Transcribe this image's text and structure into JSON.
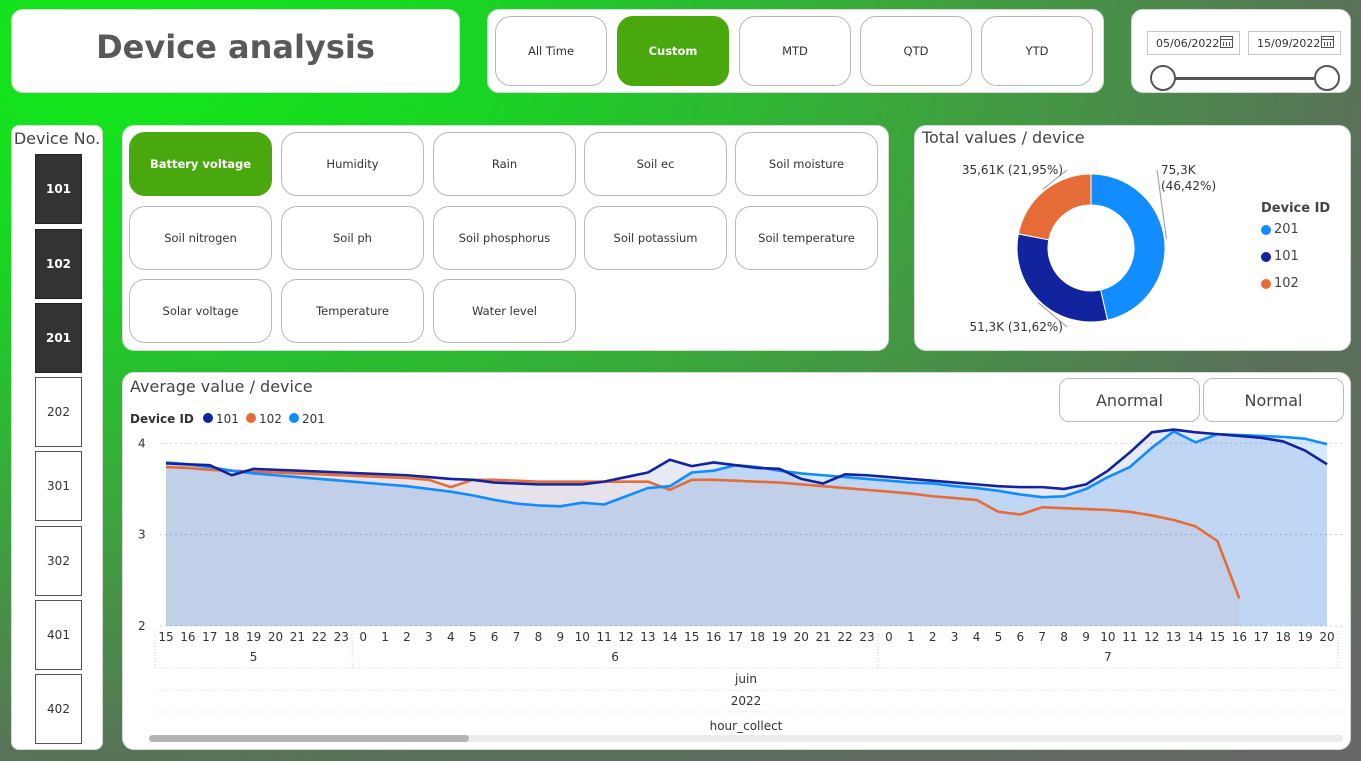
{
  "header": {
    "title": "Device analysis"
  },
  "period_buttons": [
    {
      "label": "All Time",
      "active": false
    },
    {
      "label": "Custom",
      "active": true
    },
    {
      "label": "MTD",
      "active": false
    },
    {
      "label": "QTD",
      "active": false
    },
    {
      "label": "YTD",
      "active": false
    }
  ],
  "date_range": {
    "start": "05/06/2022",
    "end": "15/09/2022"
  },
  "devices": {
    "title": "Device No.",
    "items": [
      {
        "label": "101",
        "selected": true
      },
      {
        "label": "102",
        "selected": true
      },
      {
        "label": "201",
        "selected": true
      },
      {
        "label": "202",
        "selected": false
      },
      {
        "label": "301",
        "selected": false
      },
      {
        "label": "302",
        "selected": false
      },
      {
        "label": "401",
        "selected": false
      },
      {
        "label": "402",
        "selected": false
      }
    ]
  },
  "metrics": {
    "items": [
      {
        "label": "Battery voltage",
        "active": true
      },
      {
        "label": "Humidity",
        "active": false
      },
      {
        "label": "Rain",
        "active": false
      },
      {
        "label": "Soil ec",
        "active": false
      },
      {
        "label": "Soil moisture",
        "active": false
      },
      {
        "label": "Soil nitrogen",
        "active": false
      },
      {
        "label": "Soil ph",
        "active": false
      },
      {
        "label": "Soil phosphorus",
        "active": false
      },
      {
        "label": "Soil potassium",
        "active": false
      },
      {
        "label": "Soil temperature",
        "active": false
      },
      {
        "label": "Solar voltage",
        "active": false
      },
      {
        "label": "Temperature",
        "active": false
      },
      {
        "label": "Water level",
        "active": false
      }
    ]
  },
  "colors": {
    "accent": "#4aa80f",
    "d201": "#118dff",
    "d101": "#12239e",
    "d102": "#e66c37"
  },
  "status_buttons": {
    "anormal": "Anormal",
    "normal": "Normal"
  },
  "chart_data": [
    {
      "type": "pie",
      "title": "Total values / device",
      "legend_title": "Device ID",
      "legend_position": "right",
      "slices": [
        {
          "name": "201",
          "value": 75.3,
          "label": "75,3K",
          "pct_label": "(46,42%)",
          "color": "#118dff"
        },
        {
          "name": "101",
          "value": 51.3,
          "label": "51,3K (31,62%)",
          "color": "#12239e"
        },
        {
          "name": "102",
          "value": 35.61,
          "label": "35,61K (21,95%)",
          "color": "#e66c37"
        }
      ]
    },
    {
      "type": "line",
      "title": "Average value / device",
      "legend_title": "Device ID",
      "legend_position": "top-left",
      "xlabel": "hour_collect",
      "hours": [
        "15",
        "16",
        "17",
        "18",
        "19",
        "20",
        "21",
        "22",
        "23",
        "0",
        "1",
        "2",
        "3",
        "4",
        "5",
        "6",
        "7",
        "8",
        "9",
        "10",
        "11",
        "12",
        "13",
        "14",
        "15",
        "16",
        "17",
        "18",
        "19",
        "20",
        "21",
        "22",
        "23",
        "0",
        "1",
        "2",
        "3",
        "4",
        "5",
        "6",
        "7",
        "8",
        "9",
        "10",
        "11",
        "12",
        "13",
        "14",
        "15",
        "16",
        "17",
        "18",
        "19",
        "20"
      ],
      "day_labels": [
        "5",
        "6",
        "7"
      ],
      "month_label": "juin",
      "year_label": "2022",
      "ylim": [
        2,
        4.2
      ],
      "yticks": [
        "2",
        "3",
        "4"
      ],
      "grid": true,
      "series": [
        {
          "name": "101",
          "color": "#12239e",
          "values": [
            3.78,
            3.77,
            3.76,
            3.65,
            3.72,
            3.71,
            3.7,
            3.69,
            3.68,
            3.67,
            3.66,
            3.65,
            3.63,
            3.61,
            3.6,
            3.57,
            3.56,
            3.55,
            3.55,
            3.55,
            3.58,
            3.63,
            3.68,
            3.82,
            3.75,
            3.79,
            3.76,
            3.73,
            3.72,
            3.61,
            3.56,
            3.66,
            3.65,
            3.63,
            3.61,
            3.59,
            3.57,
            3.55,
            3.53,
            3.52,
            3.52,
            3.5,
            3.55,
            3.7,
            3.9,
            4.12,
            4.15,
            4.12,
            4.1,
            4.08,
            4.06,
            4.02,
            3.92,
            3.77
          ]
        },
        {
          "name": "102",
          "color": "#e66c37",
          "values": [
            3.74,
            3.73,
            3.71,
            3.7,
            3.69,
            3.68,
            3.67,
            3.66,
            3.65,
            3.64,
            3.63,
            3.62,
            3.6,
            3.52,
            3.6,
            3.6,
            3.59,
            3.58,
            3.58,
            3.58,
            3.58,
            3.58,
            3.58,
            3.49,
            3.6,
            3.6,
            3.59,
            3.58,
            3.57,
            3.55,
            3.53,
            3.51,
            3.49,
            3.47,
            3.45,
            3.42,
            3.4,
            3.38,
            3.25,
            3.22,
            3.3,
            3.29,
            3.28,
            3.27,
            3.25,
            3.21,
            3.16,
            3.09,
            2.93,
            2.3
          ]
        },
        {
          "name": "201",
          "color": "#118dff",
          "values": [
            3.79,
            3.77,
            3.74,
            3.7,
            3.67,
            3.65,
            3.63,
            3.61,
            3.59,
            3.57,
            3.55,
            3.53,
            3.5,
            3.47,
            3.43,
            3.38,
            3.34,
            3.32,
            3.31,
            3.35,
            3.33,
            3.42,
            3.51,
            3.53,
            3.68,
            3.7,
            3.76,
            3.74,
            3.7,
            3.67,
            3.65,
            3.63,
            3.61,
            3.59,
            3.57,
            3.56,
            3.53,
            3.51,
            3.48,
            3.44,
            3.41,
            3.42,
            3.5,
            3.63,
            3.74,
            3.95,
            4.13,
            4.01,
            4.1,
            4.09,
            4.08,
            4.07,
            4.05,
            3.99
          ]
        }
      ]
    }
  ]
}
